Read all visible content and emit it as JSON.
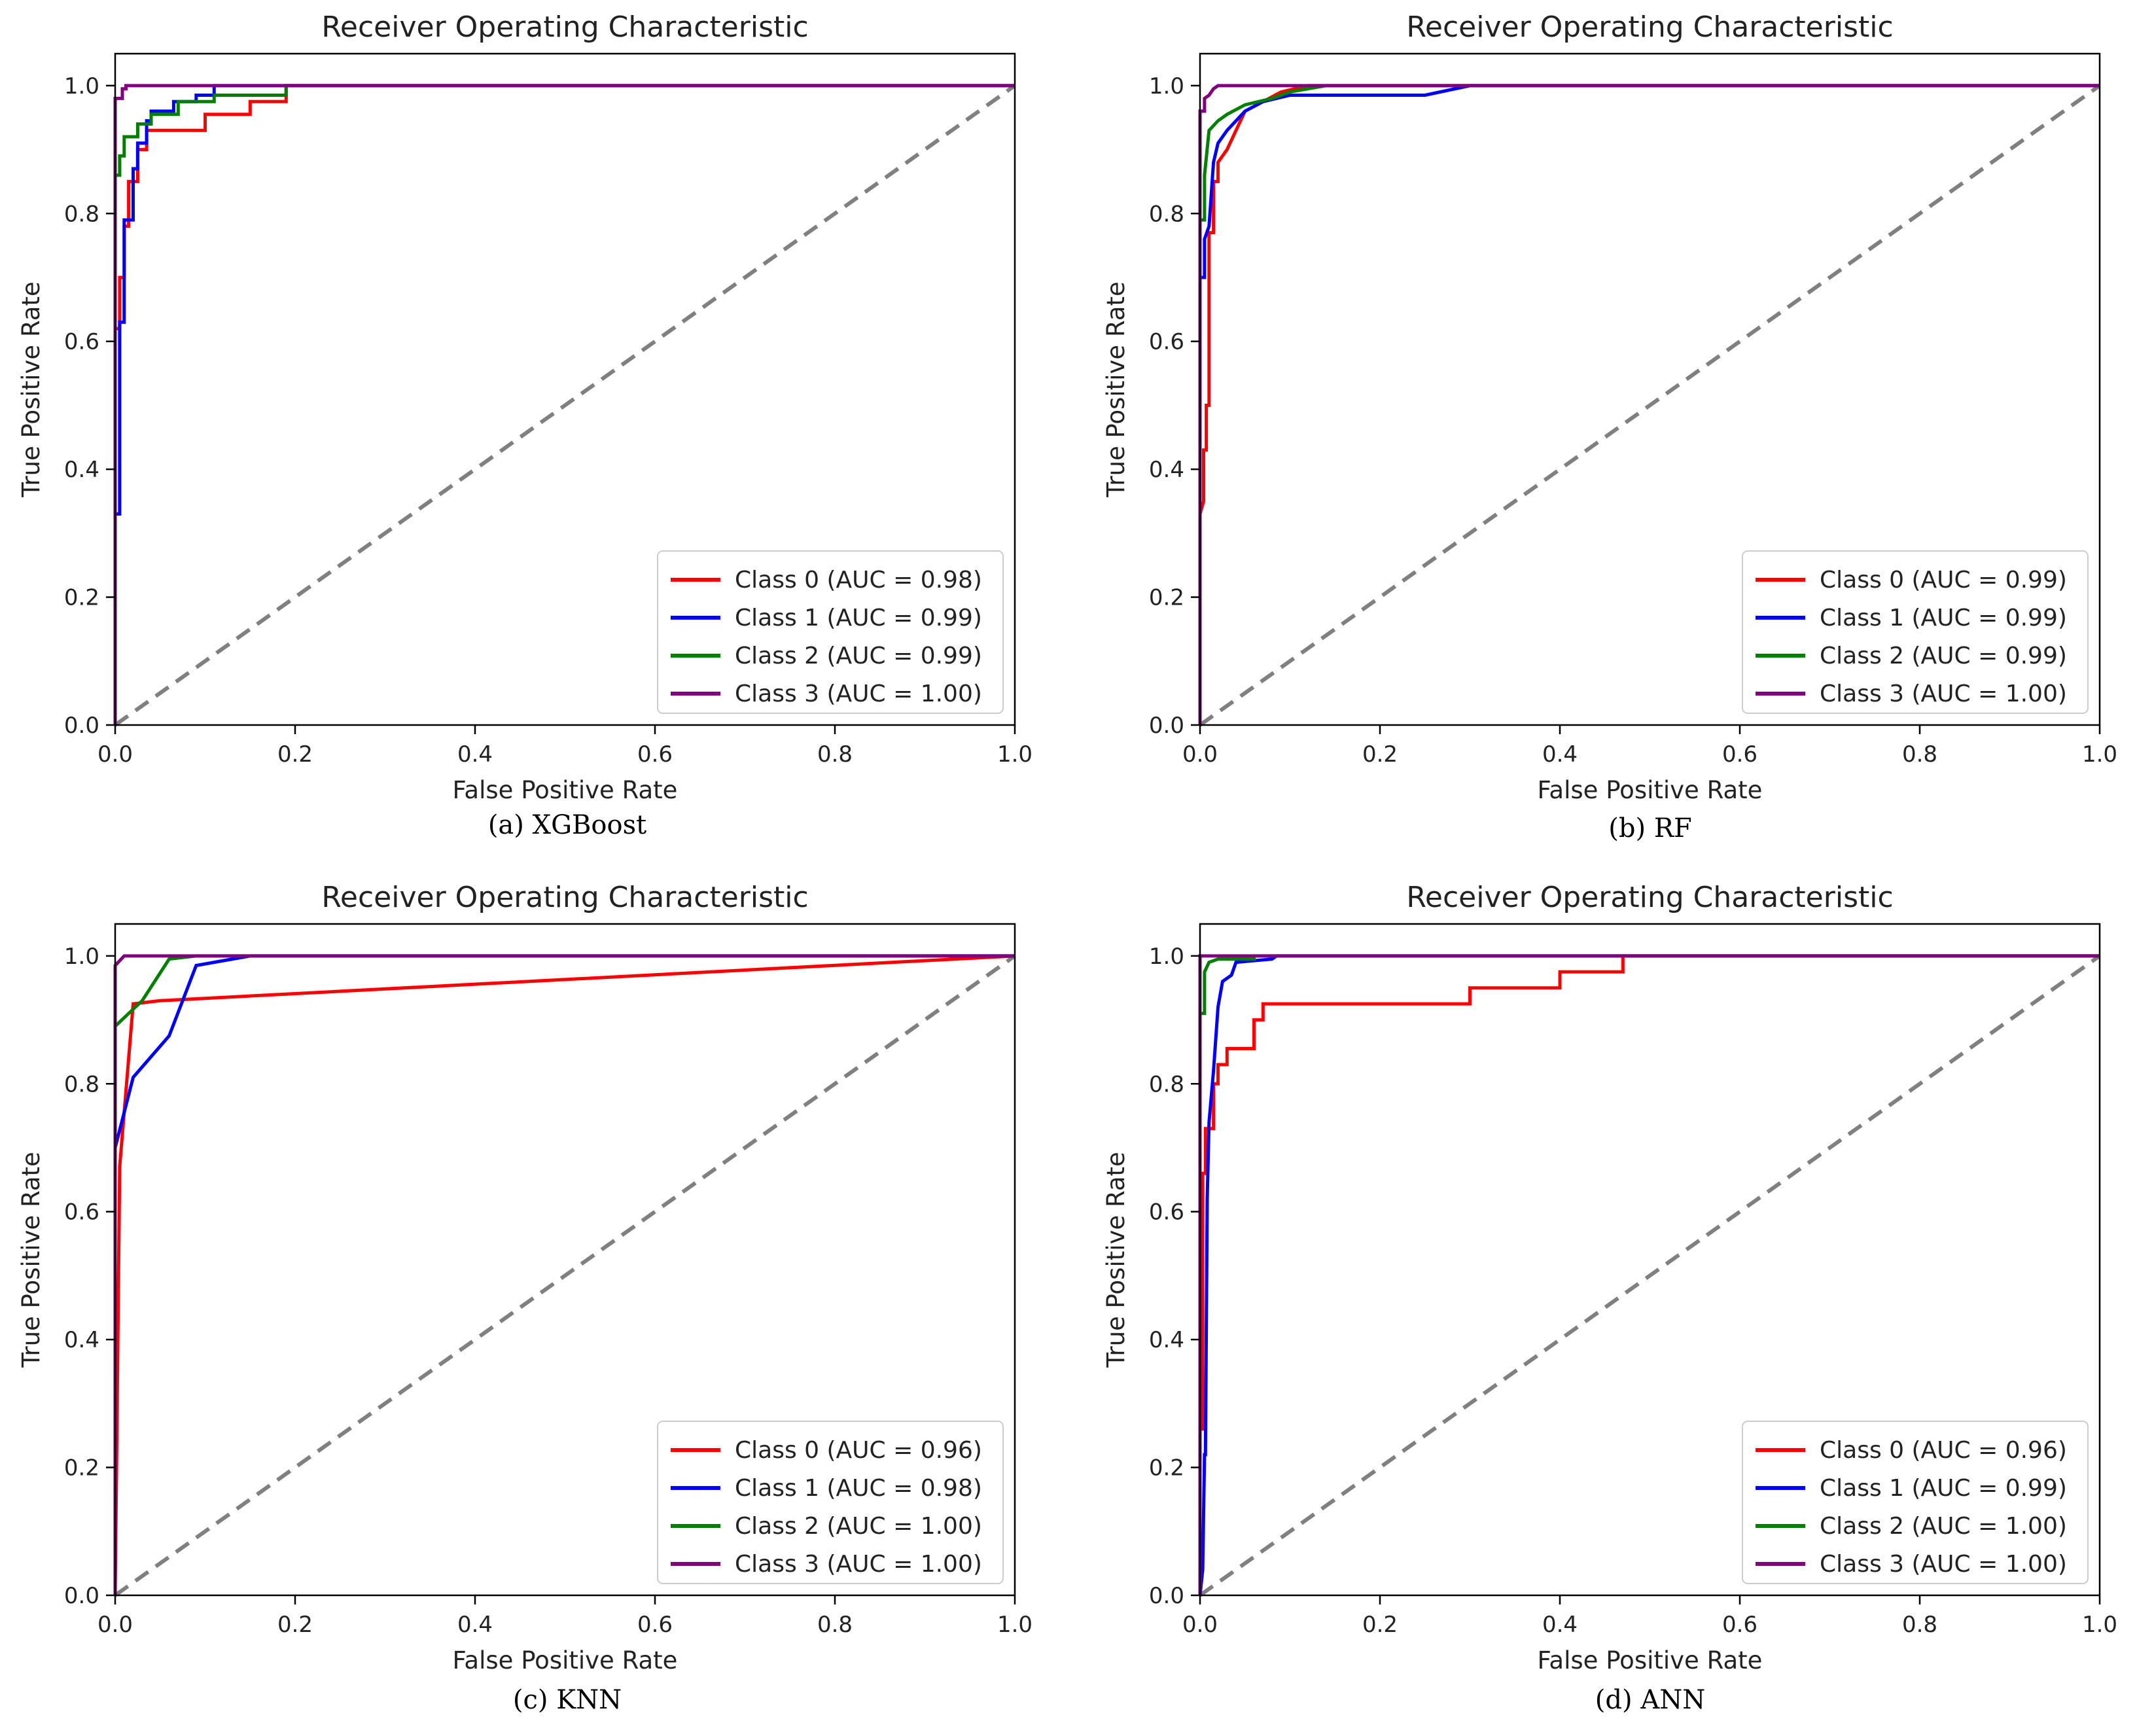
{
  "colors": {
    "class0": "#ff0000",
    "class1": "#0000ff",
    "class2": "#008000",
    "class3": "#800080",
    "diagonal": "#808080"
  },
  "axis_common": {
    "xticks": [
      "0.0",
      "0.2",
      "0.4",
      "0.6",
      "0.8",
      "1.0"
    ],
    "yticks": [
      "0.0",
      "0.2",
      "0.4",
      "0.6",
      "0.8",
      "1.0"
    ]
  },
  "chart_data": [
    {
      "type": "line",
      "title": "Receiver Operating Characteristic",
      "caption": "(a) XGBoost",
      "xlabel": "False Positive Rate",
      "ylabel": "True Positive Rate",
      "xlim": [
        0,
        1
      ],
      "ylim": [
        0,
        1.05
      ],
      "legend_position": "lower-right",
      "series": [
        {
          "name": "Class 0 (AUC = 0.98)",
          "color": "#ff0000",
          "points": [
            [
              0,
              0
            ],
            [
              0,
              0.62
            ],
            [
              0.005,
              0.62
            ],
            [
              0.005,
              0.7
            ],
            [
              0.01,
              0.7
            ],
            [
              0.01,
              0.78
            ],
            [
              0.015,
              0.78
            ],
            [
              0.015,
              0.85
            ],
            [
              0.025,
              0.85
            ],
            [
              0.025,
              0.9
            ],
            [
              0.035,
              0.9
            ],
            [
              0.035,
              0.93
            ],
            [
              0.1,
              0.93
            ],
            [
              0.1,
              0.955
            ],
            [
              0.15,
              0.955
            ],
            [
              0.15,
              0.975
            ],
            [
              0.19,
              0.975
            ],
            [
              0.19,
              1.0
            ],
            [
              1,
              1.0
            ]
          ]
        },
        {
          "name": "Class 1 (AUC = 0.99)",
          "color": "#0000ff",
          "points": [
            [
              0,
              0
            ],
            [
              0,
              0.33
            ],
            [
              0.005,
              0.33
            ],
            [
              0.005,
              0.63
            ],
            [
              0.01,
              0.63
            ],
            [
              0.01,
              0.79
            ],
            [
              0.02,
              0.79
            ],
            [
              0.02,
              0.87
            ],
            [
              0.025,
              0.87
            ],
            [
              0.025,
              0.91
            ],
            [
              0.035,
              0.91
            ],
            [
              0.035,
              0.945
            ],
            [
              0.04,
              0.945
            ],
            [
              0.04,
              0.96
            ],
            [
              0.065,
              0.96
            ],
            [
              0.065,
              0.975
            ],
            [
              0.09,
              0.975
            ],
            [
              0.09,
              0.985
            ],
            [
              0.11,
              0.985
            ],
            [
              0.11,
              1.0
            ],
            [
              1,
              1.0
            ]
          ]
        },
        {
          "name": "Class 2 (AUC = 0.99)",
          "color": "#008000",
          "points": [
            [
              0,
              0
            ],
            [
              0,
              0.86
            ],
            [
              0.005,
              0.86
            ],
            [
              0.005,
              0.89
            ],
            [
              0.01,
              0.89
            ],
            [
              0.01,
              0.92
            ],
            [
              0.025,
              0.92
            ],
            [
              0.025,
              0.94
            ],
            [
              0.04,
              0.94
            ],
            [
              0.04,
              0.955
            ],
            [
              0.07,
              0.955
            ],
            [
              0.07,
              0.975
            ],
            [
              0.11,
              0.975
            ],
            [
              0.11,
              0.985
            ],
            [
              0.19,
              0.985
            ],
            [
              0.19,
              1.0
            ],
            [
              1,
              1.0
            ]
          ]
        },
        {
          "name": "Class 3 (AUC = 1.00)",
          "color": "#800080",
          "points": [
            [
              0,
              0
            ],
            [
              0,
              0.98
            ],
            [
              0.008,
              0.98
            ],
            [
              0.008,
              0.995
            ],
            [
              0.012,
              0.995
            ],
            [
              0.012,
              1.0
            ],
            [
              1,
              1.0
            ]
          ]
        }
      ]
    },
    {
      "type": "line",
      "title": "Receiver Operating Characteristic",
      "caption": "(b) RF",
      "xlabel": "False Positive Rate",
      "ylabel": "True Positive Rate",
      "xlim": [
        0,
        1
      ],
      "ylim": [
        0,
        1.05
      ],
      "legend_position": "lower-right",
      "series": [
        {
          "name": "Class 0 (AUC = 0.99)",
          "color": "#ff0000",
          "points": [
            [
              0,
              0
            ],
            [
              0,
              0.33
            ],
            [
              0.004,
              0.35
            ],
            [
              0.004,
              0.43
            ],
            [
              0.007,
              0.43
            ],
            [
              0.007,
              0.5
            ],
            [
              0.01,
              0.5
            ],
            [
              0.01,
              0.77
            ],
            [
              0.015,
              0.77
            ],
            [
              0.015,
              0.85
            ],
            [
              0.02,
              0.85
            ],
            [
              0.02,
              0.88
            ],
            [
              0.03,
              0.9
            ],
            [
              0.04,
              0.93
            ],
            [
              0.05,
              0.96
            ],
            [
              0.07,
              0.975
            ],
            [
              0.09,
              0.99
            ],
            [
              0.12,
              1.0
            ],
            [
              1,
              1.0
            ]
          ]
        },
        {
          "name": "Class 1 (AUC = 0.99)",
          "color": "#0000ff",
          "points": [
            [
              0,
              0
            ],
            [
              0,
              0.7
            ],
            [
              0.005,
              0.7
            ],
            [
              0.005,
              0.76
            ],
            [
              0.01,
              0.78
            ],
            [
              0.015,
              0.88
            ],
            [
              0.02,
              0.91
            ],
            [
              0.03,
              0.93
            ],
            [
              0.05,
              0.96
            ],
            [
              0.07,
              0.975
            ],
            [
              0.1,
              0.985
            ],
            [
              0.25,
              0.985
            ],
            [
              0.3,
              1.0
            ],
            [
              1,
              1.0
            ]
          ]
        },
        {
          "name": "Class 2 (AUC = 0.99)",
          "color": "#008000",
          "points": [
            [
              0,
              0
            ],
            [
              0,
              0.79
            ],
            [
              0.005,
              0.79
            ],
            [
              0.005,
              0.86
            ],
            [
              0.01,
              0.93
            ],
            [
              0.02,
              0.945
            ],
            [
              0.03,
              0.955
            ],
            [
              0.05,
              0.97
            ],
            [
              0.08,
              0.98
            ],
            [
              0.1,
              0.99
            ],
            [
              0.12,
              0.995
            ],
            [
              0.14,
              1.0
            ],
            [
              1,
              1.0
            ]
          ]
        },
        {
          "name": "Class 3 (AUC = 1.00)",
          "color": "#800080",
          "points": [
            [
              0,
              0
            ],
            [
              0,
              0.96
            ],
            [
              0.005,
              0.96
            ],
            [
              0.005,
              0.98
            ],
            [
              0.01,
              0.985
            ],
            [
              0.015,
              0.995
            ],
            [
              0.02,
              1.0
            ],
            [
              1,
              1.0
            ]
          ]
        }
      ]
    },
    {
      "type": "line",
      "title": "Receiver Operating Characteristic",
      "caption": "(c) KNN",
      "xlabel": "False Positive Rate",
      "ylabel": "True Positive Rate",
      "xlim": [
        0,
        1
      ],
      "ylim": [
        0,
        1.05
      ],
      "legend_position": "lower-right",
      "series": [
        {
          "name": "Class 0 (AUC = 0.96)",
          "color": "#ff0000",
          "points": [
            [
              0,
              0
            ],
            [
              0.005,
              0.67
            ],
            [
              0.02,
              0.925
            ],
            [
              0.05,
              0.93
            ],
            [
              1,
              1.0
            ]
          ]
        },
        {
          "name": "Class 1 (AUC = 0.98)",
          "color": "#0000ff",
          "points": [
            [
              0,
              0
            ],
            [
              0,
              0.7
            ],
            [
              0.02,
              0.81
            ],
            [
              0.06,
              0.875
            ],
            [
              0.09,
              0.985
            ],
            [
              0.15,
              1.0
            ],
            [
              1,
              1.0
            ]
          ]
        },
        {
          "name": "Class 2 (AUC = 1.00)",
          "color": "#008000",
          "points": [
            [
              0,
              0
            ],
            [
              0,
              0.89
            ],
            [
              0.03,
              0.93
            ],
            [
              0.06,
              0.995
            ],
            [
              0.09,
              1.0
            ],
            [
              1,
              1.0
            ]
          ]
        },
        {
          "name": "Class 3 (AUC = 1.00)",
          "color": "#800080",
          "points": [
            [
              0,
              0
            ],
            [
              0,
              0.985
            ],
            [
              0.01,
              1.0
            ],
            [
              1,
              1.0
            ]
          ]
        }
      ]
    },
    {
      "type": "line",
      "title": "Receiver Operating Characteristic",
      "caption": "(d) ANN",
      "xlabel": "False Positive Rate",
      "ylabel": "True Positive Rate",
      "xlim": [
        0,
        1
      ],
      "ylim": [
        0,
        1.05
      ],
      "legend_position": "lower-right",
      "series": [
        {
          "name": "Class 0 (AUC = 0.96)",
          "color": "#ff0000",
          "points": [
            [
              0,
              0
            ],
            [
              0,
              0.26
            ],
            [
              0.003,
              0.26
            ],
            [
              0.003,
              0.66
            ],
            [
              0.006,
              0.66
            ],
            [
              0.006,
              0.73
            ],
            [
              0.015,
              0.73
            ],
            [
              0.015,
              0.8
            ],
            [
              0.02,
              0.8
            ],
            [
              0.02,
              0.83
            ],
            [
              0.03,
              0.83
            ],
            [
              0.03,
              0.855
            ],
            [
              0.06,
              0.855
            ],
            [
              0.06,
              0.9
            ],
            [
              0.07,
              0.9
            ],
            [
              0.07,
              0.925
            ],
            [
              0.3,
              0.925
            ],
            [
              0.3,
              0.95
            ],
            [
              0.4,
              0.95
            ],
            [
              0.4,
              0.975
            ],
            [
              0.47,
              0.975
            ],
            [
              0.47,
              1.0
            ],
            [
              1,
              1.0
            ]
          ]
        },
        {
          "name": "Class 1 (AUC = 0.99)",
          "color": "#0000ff",
          "points": [
            [
              0,
              0
            ],
            [
              0.003,
              0.04
            ],
            [
              0.005,
              0.22
            ],
            [
              0.006,
              0.22
            ],
            [
              0.008,
              0.62
            ],
            [
              0.01,
              0.74
            ],
            [
              0.015,
              0.82
            ],
            [
              0.02,
              0.92
            ],
            [
              0.025,
              0.96
            ],
            [
              0.035,
              0.97
            ],
            [
              0.04,
              0.99
            ],
            [
              0.08,
              0.995
            ],
            [
              0.085,
              1.0
            ],
            [
              1,
              1.0
            ]
          ]
        },
        {
          "name": "Class 2 (AUC = 1.00)",
          "color": "#008000",
          "points": [
            [
              0,
              0
            ],
            [
              0,
              0.91
            ],
            [
              0.005,
              0.91
            ],
            [
              0.005,
              0.975
            ],
            [
              0.01,
              0.99
            ],
            [
              0.02,
              0.995
            ],
            [
              0.06,
              0.995
            ],
            [
              0.06,
              1.0
            ],
            [
              1,
              1.0
            ]
          ]
        },
        {
          "name": "Class 3 (AUC = 1.00)",
          "color": "#800080",
          "points": [
            [
              0,
              0
            ],
            [
              0,
              1.0
            ],
            [
              1,
              1.0
            ]
          ]
        }
      ]
    }
  ]
}
